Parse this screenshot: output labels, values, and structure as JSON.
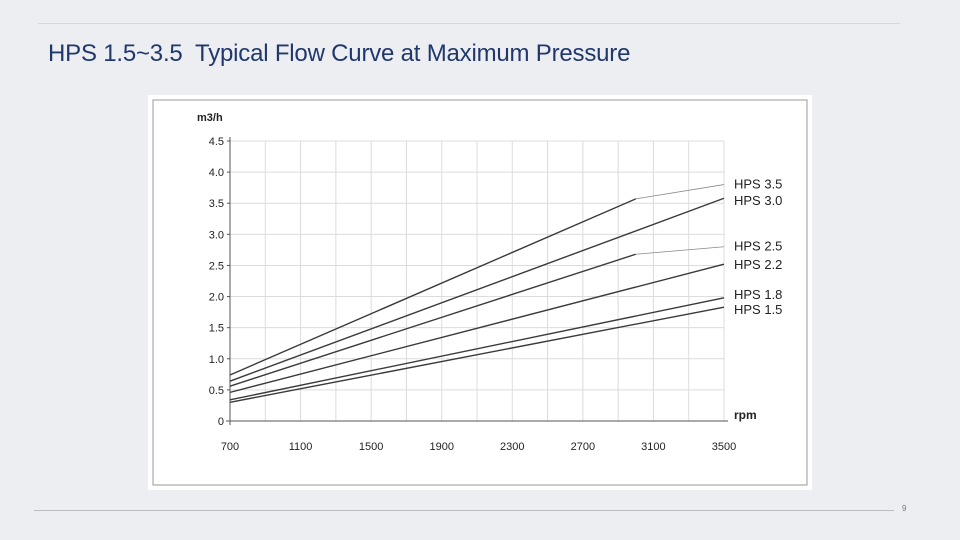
{
  "slide": {
    "title": "HPS 1.5~3.5  Typical Flow Curve at Maximum Pressure",
    "page_number": "9"
  },
  "chart_data": {
    "type": "line",
    "title": "",
    "xlabel": "rpm",
    "ylabel": "m3/h",
    "x_ticks": [
      700,
      1100,
      1500,
      1900,
      2300,
      2700,
      3100,
      3500
    ],
    "y_ticks": [
      0,
      0.5,
      1.0,
      1.5,
      2.0,
      2.5,
      3.0,
      3.5,
      4.0,
      4.5
    ],
    "y_tick_labels": [
      "0",
      "0.5",
      "1.0",
      "1.5",
      "2.0",
      "2.5",
      "3.0",
      "3.5",
      "4.0",
      "4.5"
    ],
    "xlim": [
      700,
      3500
    ],
    "ylim": [
      0,
      4.5
    ],
    "grid": true,
    "series": [
      {
        "name": "HPS 3.5",
        "x": [
          700,
          3000
        ],
        "y": [
          0.74,
          3.57
        ],
        "label_y": 3.82
      },
      {
        "name": "HPS 3.0",
        "x": [
          700,
          3500
        ],
        "y": [
          0.64,
          3.58
        ],
        "label_y": 3.55
      },
      {
        "name": "HPS 2.5",
        "x": [
          700,
          3000
        ],
        "y": [
          0.56,
          2.68
        ],
        "label_y": 2.82
      },
      {
        "name": "HPS 2.2",
        "x": [
          700,
          3500
        ],
        "y": [
          0.46,
          2.52
        ],
        "label_y": 2.52
      },
      {
        "name": "HPS 1.8",
        "x": [
          700,
          3500
        ],
        "y": [
          0.34,
          1.98
        ],
        "label_y": 2.04
      },
      {
        "name": "HPS 1.5",
        "x": [
          700,
          3500
        ],
        "y": [
          0.3,
          1.83
        ],
        "label_y": 1.8
      }
    ],
    "leaders": [
      {
        "series": "HPS 3.5",
        "from": [
          3000,
          3.57
        ],
        "to": [
          3500,
          3.8
        ]
      },
      {
        "series": "HPS 2.5",
        "from": [
          3000,
          2.68
        ],
        "to": [
          3500,
          2.8
        ]
      }
    ]
  }
}
